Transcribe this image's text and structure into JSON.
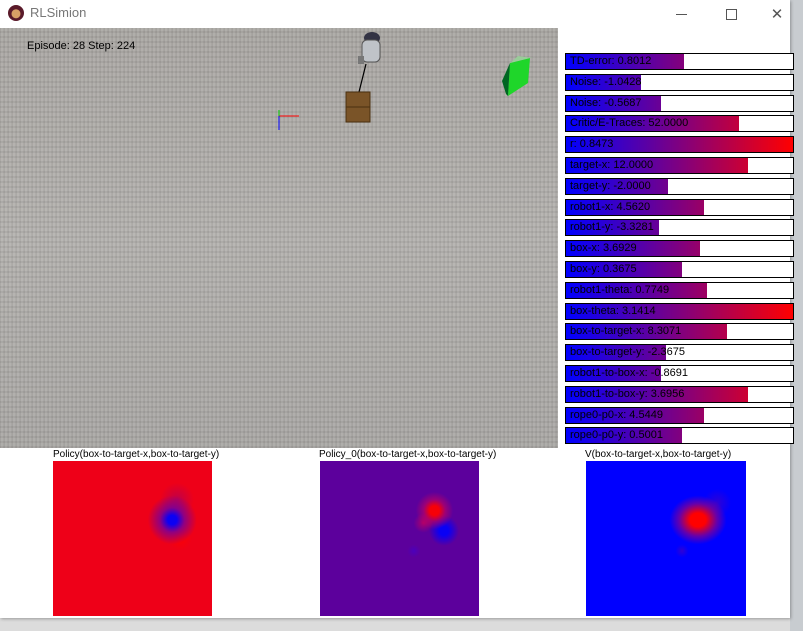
{
  "window": {
    "title": "RLSimion",
    "app_icon": "monkey-icon",
    "controls": [
      "minimize-icon",
      "maximize-icon",
      "close-icon"
    ]
  },
  "scene": {
    "status": "Episode: 28 Step: 224"
  },
  "colors": {
    "bar_low": "#0000ff",
    "bar_high": "#ff0000",
    "policy_bg": "#ee0018",
    "policy0_bg": "#5c009c",
    "v_bg": "#0000ff"
  },
  "bars": [
    {
      "label": "TD-error: 0.8012",
      "fill": 0.52
    },
    {
      "label": "Noise: -1.0428",
      "fill": 0.33
    },
    {
      "label": "Noise: -0.5687",
      "fill": 0.42
    },
    {
      "label": "Critic/E-Traces: 52.0000",
      "fill": 0.76
    },
    {
      "label": "r: 0.8473",
      "fill": 1.0
    },
    {
      "label": "target-x: 12.0000",
      "fill": 0.8
    },
    {
      "label": "target-y: -2.0000",
      "fill": 0.45
    },
    {
      "label": "robot1-x: 4.5620",
      "fill": 0.61
    },
    {
      "label": "robot1-y: -3.3281",
      "fill": 0.41
    },
    {
      "label": "box-x: 3.6929",
      "fill": 0.59
    },
    {
      "label": "box-y: 0.3675",
      "fill": 0.51
    },
    {
      "label": "robot1-theta: 0.7749",
      "fill": 0.62
    },
    {
      "label": "box-theta: 3.1414",
      "fill": 1.0
    },
    {
      "label": "box-to-target-x: 8.3071",
      "fill": 0.71
    },
    {
      "label": "box-to-target-y: -2.3675",
      "fill": 0.44
    },
    {
      "label": "robot1-to-box-x: -0.8691",
      "fill": 0.42
    },
    {
      "label": "robot1-to-box-y: 3.6956",
      "fill": 0.8
    },
    {
      "label": "rope0-p0-x: 4.5449",
      "fill": 0.61
    },
    {
      "label": "rope0-p0-y: 0.5001",
      "fill": 0.51
    }
  ],
  "heatmaps": [
    {
      "title": "Policy(box-to-target-x,box-to-target-y)"
    },
    {
      "title": "Policy_0(box-to-target-x,box-to-target-y)"
    },
    {
      "title": "V(box-to-target-x,box-to-target-y)"
    }
  ]
}
